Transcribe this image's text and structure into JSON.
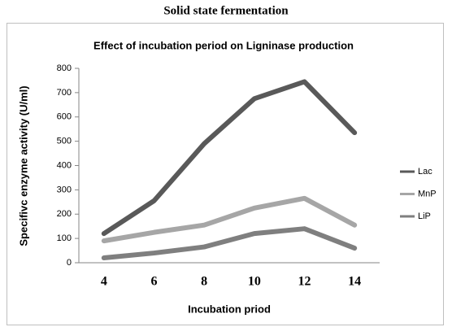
{
  "chart_data": {
    "type": "line",
    "title": "Solid state fermentation",
    "subtitle": "Effect of incubation period on Ligninase production",
    "x_label": "Incubation priod",
    "y_label": "Specifivc enzyme activity (U/ml)",
    "categories": [
      "4",
      "6",
      "8",
      "10",
      "12",
      "14"
    ],
    "series": [
      {
        "name": "Lac",
        "color": "#595959",
        "values": [
          120,
          255,
          490,
          675,
          745,
          535
        ]
      },
      {
        "name": "MnP",
        "color": "#a6a6a6",
        "values": [
          90,
          125,
          155,
          225,
          265,
          155
        ]
      },
      {
        "name": "LiP",
        "color": "#7f7f7f",
        "values": [
          20,
          40,
          65,
          120,
          140,
          60
        ]
      }
    ],
    "ylim": [
      0,
      800
    ],
    "yticks": [
      0,
      100,
      200,
      300,
      400,
      500,
      600,
      700,
      800
    ],
    "grid": false,
    "legend": "right"
  }
}
